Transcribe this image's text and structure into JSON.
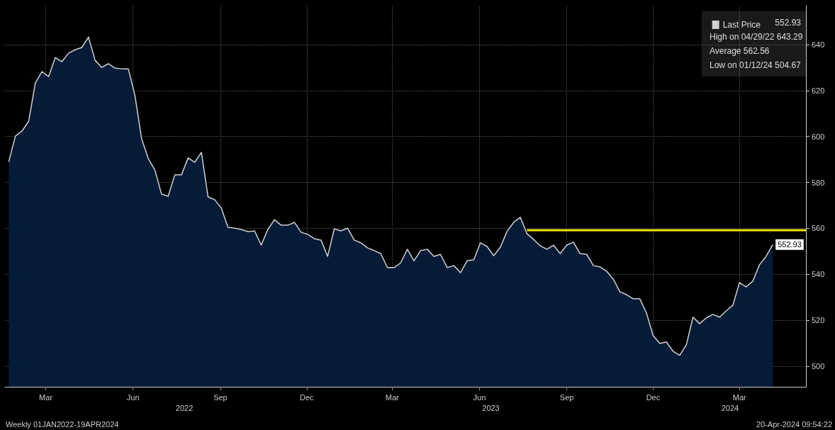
{
  "chart_data": {
    "type": "area",
    "x": [
      "2022-02-04",
      "2022-02-11",
      "2022-02-18",
      "2022-02-25",
      "2022-03-04",
      "2022-03-11",
      "2022-03-18",
      "2022-03-25",
      "2022-04-01",
      "2022-04-08",
      "2022-04-15",
      "2022-04-22",
      "2022-04-29",
      "2022-05-06",
      "2022-05-13",
      "2022-05-20",
      "2022-05-27",
      "2022-06-03",
      "2022-06-10",
      "2022-06-17",
      "2022-06-24",
      "2022-07-01",
      "2022-07-08",
      "2022-07-15",
      "2022-07-22",
      "2022-07-29",
      "2022-08-05",
      "2022-08-12",
      "2022-08-19",
      "2022-08-26",
      "2022-09-02",
      "2022-09-09",
      "2022-09-16",
      "2022-09-23",
      "2022-09-30",
      "2022-10-07",
      "2022-10-14",
      "2022-10-21",
      "2022-10-28",
      "2022-11-04",
      "2022-11-11",
      "2022-11-18",
      "2022-11-25",
      "2022-12-02",
      "2022-12-09",
      "2022-12-16",
      "2022-12-23",
      "2022-12-30",
      "2023-01-06",
      "2023-01-13",
      "2023-01-20",
      "2023-01-27",
      "2023-02-03",
      "2023-02-10",
      "2023-02-17",
      "2023-02-24",
      "2023-03-03",
      "2023-03-10",
      "2023-03-17",
      "2023-03-24",
      "2023-03-31",
      "2023-04-07",
      "2023-04-14",
      "2023-04-21",
      "2023-04-28",
      "2023-05-05",
      "2023-05-12",
      "2023-05-19",
      "2023-05-26",
      "2023-06-02",
      "2023-06-09",
      "2023-06-16",
      "2023-06-23",
      "2023-06-30",
      "2023-07-07",
      "2023-07-14",
      "2023-07-21",
      "2023-07-28",
      "2023-08-04",
      "2023-08-11",
      "2023-08-18",
      "2023-08-25",
      "2023-09-01",
      "2023-09-08",
      "2023-09-15",
      "2023-09-22",
      "2023-09-29",
      "2023-10-06",
      "2023-10-13",
      "2023-10-20",
      "2023-10-27",
      "2023-11-03",
      "2023-11-10",
      "2023-11-17",
      "2023-11-24",
      "2023-12-01",
      "2023-12-08",
      "2023-12-15",
      "2023-12-22",
      "2023-12-29",
      "2024-01-05",
      "2024-01-12",
      "2024-01-19",
      "2024-01-26",
      "2024-02-02",
      "2024-02-09",
      "2024-02-16",
      "2024-02-23",
      "2024-03-01",
      "2024-03-08",
      "2024-03-15",
      "2024-03-22",
      "2024-03-29",
      "2024-04-05",
      "2024-04-12",
      "2024-04-19"
    ],
    "series": [
      {
        "name": "Last Price",
        "color": "#d0d0d0",
        "values": [
          589,
          600.2,
          602.4,
          606.7,
          623.3,
          628.3,
          626.1,
          634.4,
          632.6,
          636.3,
          637.8,
          638.8,
          643.3,
          633.2,
          630.1,
          631.7,
          629.8,
          629.5,
          629.5,
          617.8,
          599,
          590.4,
          585.4,
          574.9,
          574,
          583.3,
          583.3,
          590.7,
          588.8,
          593.1,
          573.7,
          572.5,
          568.8,
          560.4,
          560.1,
          559.5,
          558.6,
          558.9,
          552.7,
          559.5,
          563.8,
          561.4,
          561.4,
          562.6,
          558.3,
          557.4,
          555.5,
          554.9,
          547.8,
          559.8,
          558.9,
          560.1,
          554.9,
          553.7,
          551.5,
          550.3,
          549,
          542.9,
          542.9,
          545,
          550.9,
          545.9,
          550.3,
          550.9,
          547.8,
          548.7,
          542.9,
          543.8,
          540.7,
          545.9,
          546.3,
          553.7,
          552.1,
          548.1,
          551.8,
          558.6,
          562.6,
          564.8,
          557.7,
          555.2,
          552.4,
          550.9,
          552.7,
          549,
          552.7,
          554,
          549,
          548.7,
          543.8,
          543.2,
          541.3,
          537.9,
          532.4,
          531.1,
          529.3,
          529.3,
          523.1,
          513.3,
          509.9,
          510.5,
          506.5,
          504.7,
          509.3,
          521.3,
          518.5,
          521,
          522.5,
          521.3,
          524.1,
          526.5,
          536.4,
          534.5,
          537,
          544.1,
          547.8,
          552.93
        ],
        "value_labels": [
          null,
          null,
          null,
          null,
          null,
          null,
          null,
          null,
          null,
          null,
          null,
          null,
          null,
          null,
          null,
          null,
          null,
          null,
          null,
          null,
          null,
          null,
          null,
          null,
          null,
          null,
          null,
          null,
          null,
          null,
          null,
          null,
          null,
          null,
          null,
          null,
          null,
          null,
          null,
          null,
          null,
          null,
          null,
          null,
          null,
          null,
          null,
          null,
          null,
          null,
          null,
          null,
          null,
          null,
          null,
          null,
          null,
          null,
          null,
          null,
          null,
          null,
          null,
          null,
          null,
          null,
          null,
          null,
          null,
          null,
          null,
          null,
          null,
          null,
          null,
          null,
          null,
          null,
          null,
          null,
          null,
          null,
          null,
          null,
          null,
          null,
          null,
          null,
          null,
          null,
          null,
          null,
          null,
          null,
          null,
          null,
          null,
          null,
          null,
          null,
          null,
          null,
          null,
          null,
          null,
          null,
          null,
          null,
          null,
          null,
          null,
          null,
          null,
          null,
          null,
          "552.93"
        ]
      },
      {
        "type": "line",
        "color": "#f2e60c",
        "x": [
          "2023-08-04",
          "2024-05-24"
        ],
        "values": [
          559.2,
          559.2
        ]
      }
    ],
    "xlim": [
      "2022-01-31",
      "2024-05-24"
    ],
    "xticks": [
      {
        "value": "2022-03-15",
        "label": "Mar"
      },
      {
        "value": "2022-06-15",
        "label": "Jun"
      },
      {
        "value": "2022-09-15",
        "label": "Sep"
      },
      {
        "value": "2022-12-15",
        "label": "Dec"
      },
      {
        "value": "2023-03-15",
        "label": "Mar"
      },
      {
        "value": "2023-06-15",
        "label": "Jun"
      },
      {
        "value": "2023-09-15",
        "label": "Sep"
      },
      {
        "value": "2023-12-15",
        "label": "Dec"
      },
      {
        "value": "2024-03-15",
        "label": "Mar"
      }
    ],
    "ylim": [
      491,
      657
    ],
    "yticks": [
      500,
      520,
      540,
      560,
      580,
      600,
      620,
      640
    ],
    "grid": true,
    "legend": "top right",
    "marker": "none",
    "annotations": [
      "552.93",
      "High on 04/29/22 643.29",
      "Average 562.56",
      "Low on 01/12/24 504.67",
      "Weekly 01JAN2022-19APR2024",
      "20-Apr-2024 09:54:22"
    ],
    "x2lim": [
      "2022-01-31",
      "2024-05-24"
    ],
    "x2ticks": [
      {
        "value": "2022-08-08",
        "label": "2022"
      },
      {
        "value": "2023-06-27",
        "label": "2023"
      },
      {
        "value": "2024-03-05",
        "label": "2024"
      }
    ]
  }
}
